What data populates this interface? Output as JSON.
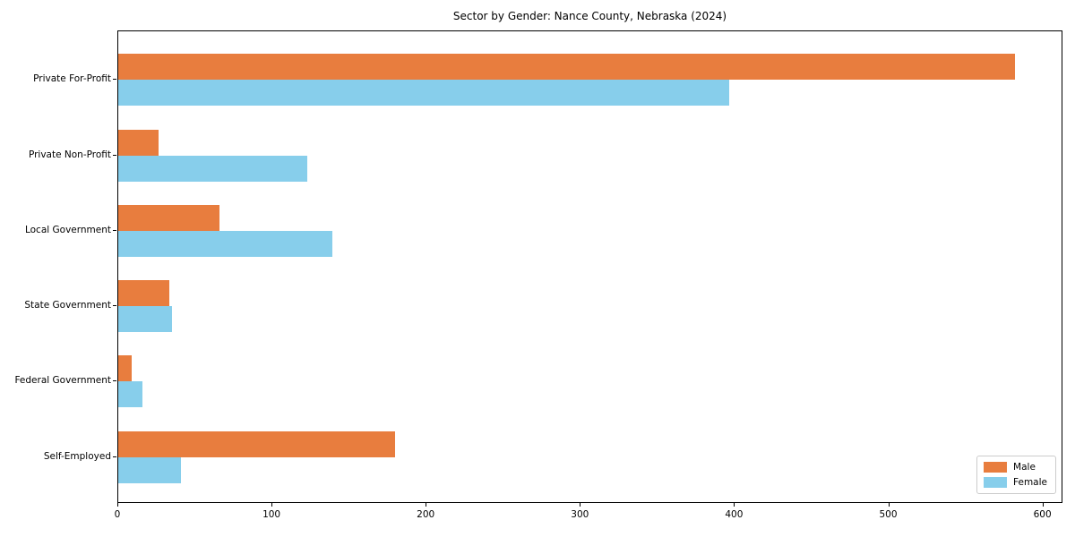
{
  "chart_data": {
    "type": "bar",
    "orientation": "horizontal",
    "title": "Sector by Gender: Nance County, Nebraska (2024)",
    "categories": [
      "Private For-Profit",
      "Private Non-Profit",
      "Local Government",
      "State Government",
      "Federal Government",
      "Self-Employed"
    ],
    "series": [
      {
        "name": "Male",
        "color": "#E87D3E",
        "values": [
          583,
          26,
          66,
          33,
          9,
          180
        ]
      },
      {
        "name": "Female",
        "color": "#87CEEB",
        "values": [
          397,
          123,
          139,
          35,
          16,
          41
        ]
      }
    ],
    "xlabel": "",
    "ylabel": "",
    "xlim": [
      0,
      613
    ],
    "xticks": [
      0,
      100,
      200,
      300,
      400,
      500,
      600
    ],
    "grid": false,
    "legend_position": "lower right"
  }
}
